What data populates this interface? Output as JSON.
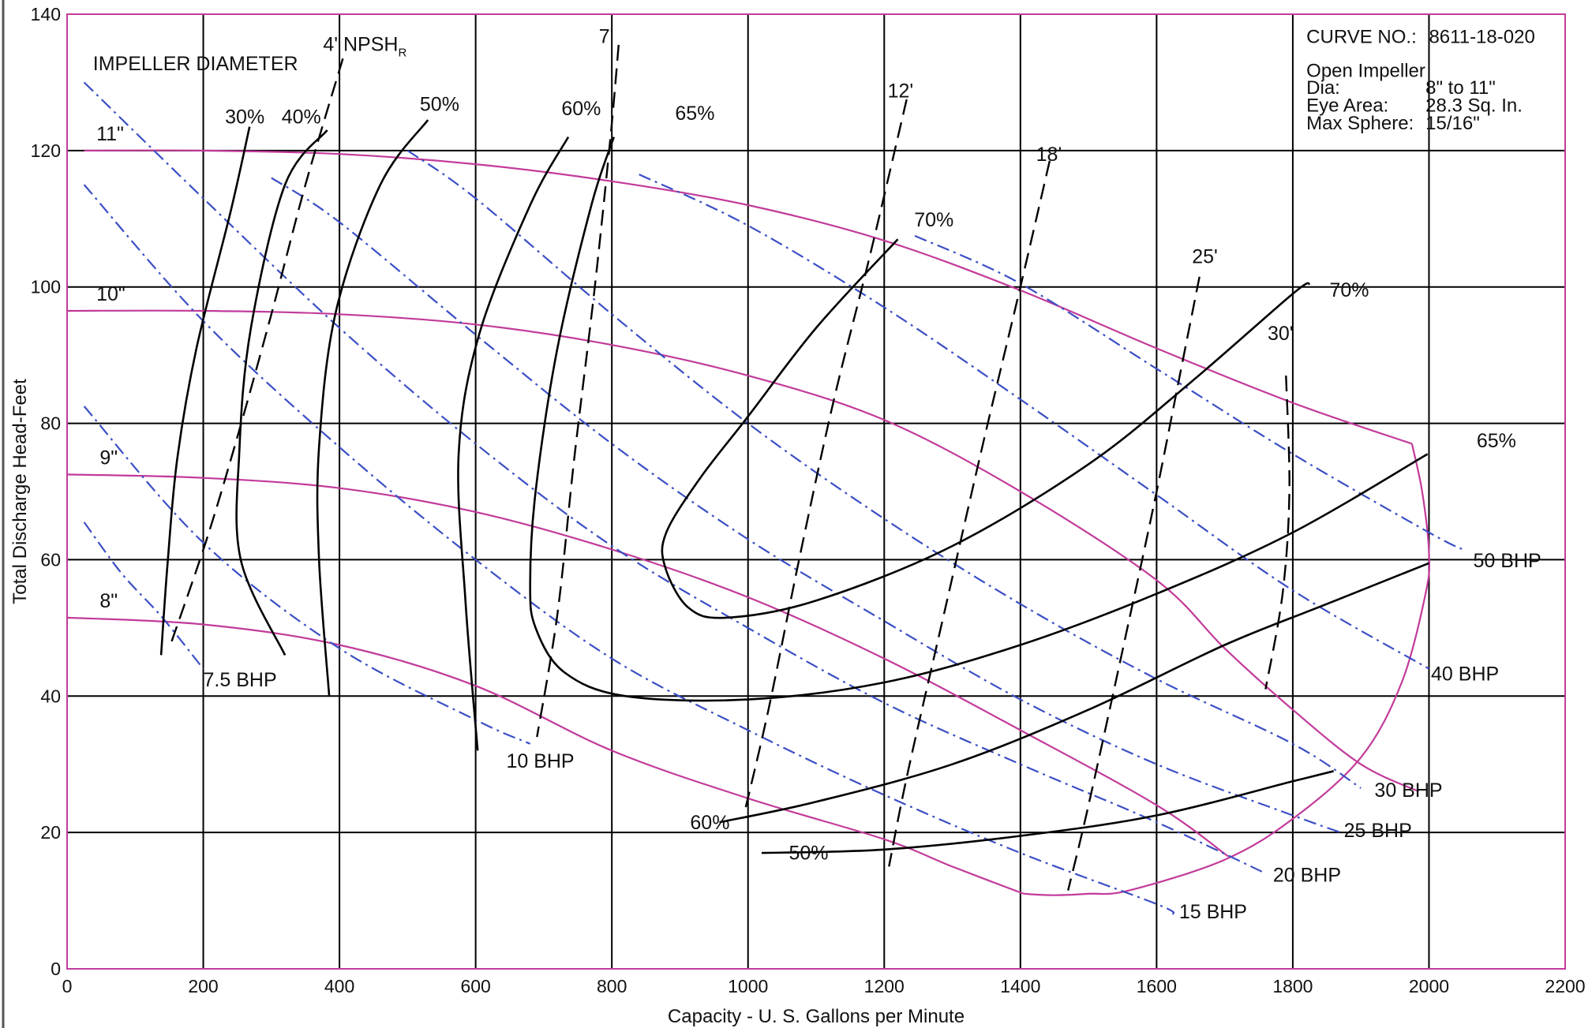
{
  "colors": {
    "impeller": "#c23b9a",
    "bhp": "#3b4fc4",
    "efficiency": "#000000",
    "npsh": "#000000",
    "grid": "#000000",
    "frame": "#c23b9a"
  },
  "chart_data": {
    "type": "line",
    "title": "",
    "xlabel": "Capacity - U. S. Gallons per Minute",
    "ylabel": "Total Discharge Head-Feet",
    "xlim": [
      0,
      2200
    ],
    "ylim": [
      0,
      140
    ],
    "x_ticks": [
      "0",
      "200",
      "400",
      "600",
      "800",
      "1000",
      "1200",
      "1400",
      "1600",
      "1800",
      "2000",
      "2200"
    ],
    "y_ticks": [
      "0",
      "20",
      "40",
      "60",
      "80",
      "100",
      "120",
      "140"
    ],
    "grid": true,
    "curve_info": {
      "curve_no_label": "CURVE NO.:",
      "curve_no_value": "8611-18-020",
      "impeller_type": "Open Impeller",
      "rows": [
        {
          "label": "Dia:",
          "value": "8\" to 11\""
        },
        {
          "label": "Eye Area:",
          "value": "28.3 Sq. In."
        },
        {
          "label": "Max Sphere:",
          "value": "15/16\""
        }
      ]
    },
    "impeller_title": "IMPELLER DIAMETER",
    "npsh_title": "4' NPSH",
    "npsh_title_sub": "R",
    "impeller_curves": [
      {
        "name": "11\"",
        "points": [
          [
            25,
            120
          ],
          [
            200,
            120
          ],
          [
            400,
            119.5
          ],
          [
            600,
            118
          ],
          [
            800,
            115.5
          ],
          [
            1000,
            112
          ],
          [
            1200,
            106.8
          ],
          [
            1400,
            99.5
          ],
          [
            1600,
            91
          ],
          [
            1800,
            83
          ],
          [
            1975,
            77
          ]
        ]
      },
      {
        "name": "10\"",
        "points": [
          [
            0,
            96.5
          ],
          [
            200,
            96.5
          ],
          [
            400,
            96
          ],
          [
            600,
            94.5
          ],
          [
            800,
            91.5
          ],
          [
            1000,
            87
          ],
          [
            1200,
            80.5
          ],
          [
            1400,
            70
          ],
          [
            1600,
            57
          ],
          [
            1700,
            47
          ],
          [
            1800,
            38
          ],
          [
            1900,
            30
          ],
          [
            1985,
            26
          ]
        ]
      },
      {
        "name": "9\"",
        "points": [
          [
            0,
            72.5
          ],
          [
            200,
            72
          ],
          [
            400,
            70.5
          ],
          [
            600,
            67
          ],
          [
            800,
            61.5
          ],
          [
            1000,
            54.5
          ],
          [
            1200,
            45.5
          ],
          [
            1400,
            35
          ],
          [
            1600,
            24
          ],
          [
            1705,
            16.5
          ]
        ]
      },
      {
        "name": "8\"",
        "points": [
          [
            0,
            51.5
          ],
          [
            200,
            50.5
          ],
          [
            400,
            47.5
          ],
          [
            600,
            41.5
          ],
          [
            800,
            32
          ],
          [
            1000,
            25
          ],
          [
            1200,
            19
          ],
          [
            1300,
            15
          ],
          [
            1405,
            11
          ]
        ]
      },
      {
        "name": "",
        "points": [
          [
            1405,
            11
          ],
          [
            1450,
            10.8
          ],
          [
            1500,
            11
          ],
          [
            1560,
            11.5
          ],
          [
            1700,
            16
          ],
          [
            1800,
            22
          ],
          [
            1900,
            31
          ],
          [
            1960,
            42
          ],
          [
            1995,
            55
          ],
          [
            2000,
            61
          ],
          [
            1990,
            70
          ],
          [
            1975,
            77
          ]
        ]
      }
    ],
    "bhp_curves": [
      {
        "name": "7.5 BHP",
        "points": [
          [
            25,
            65.5
          ],
          [
            80,
            58
          ],
          [
            140,
            51.5
          ],
          [
            200,
            44
          ]
        ]
      },
      {
        "name": "10 BHP",
        "points": [
          [
            25,
            82.5
          ],
          [
            200,
            62.5
          ],
          [
            400,
            47
          ],
          [
            600,
            36.5
          ],
          [
            680,
            33
          ]
        ]
      },
      {
        "name": "15 BHP",
        "points": [
          [
            25,
            115
          ],
          [
            200,
            95
          ],
          [
            400,
            76.5
          ],
          [
            600,
            60
          ],
          [
            800,
            45.5
          ],
          [
            1000,
            35
          ],
          [
            1200,
            25.5
          ],
          [
            1400,
            17
          ],
          [
            1600,
            9.5
          ],
          [
            1625,
            8
          ]
        ]
      },
      {
        "name": "20 BHP",
        "points": [
          [
            25,
            130
          ],
          [
            200,
            113
          ],
          [
            400,
            94
          ],
          [
            600,
            77
          ],
          [
            800,
            62
          ],
          [
            1000,
            50
          ],
          [
            1200,
            39
          ],
          [
            1400,
            30
          ],
          [
            1600,
            21.5
          ],
          [
            1760,
            14
          ]
        ]
      },
      {
        "name": "25 BHP",
        "points": [
          [
            300,
            116
          ],
          [
            400,
            109.5
          ],
          [
            600,
            93
          ],
          [
            800,
            77
          ],
          [
            1000,
            63
          ],
          [
            1200,
            51
          ],
          [
            1400,
            39.5
          ],
          [
            1600,
            30
          ],
          [
            1800,
            22.5
          ],
          [
            1870,
            20
          ]
        ]
      },
      {
        "name": "30 BHP",
        "points": [
          [
            500,
            120
          ],
          [
            600,
            113
          ],
          [
            800,
            96
          ],
          [
            1000,
            80
          ],
          [
            1200,
            66
          ],
          [
            1400,
            53.5
          ],
          [
            1600,
            42.5
          ],
          [
            1800,
            33
          ],
          [
            1900,
            26.5
          ]
        ]
      },
      {
        "name": "40 BHP",
        "points": [
          [
            840,
            116.5
          ],
          [
            1000,
            109
          ],
          [
            1200,
            97
          ],
          [
            1400,
            83.5
          ],
          [
            1600,
            69.5
          ],
          [
            1800,
            55.5
          ],
          [
            2000,
            44
          ]
        ]
      },
      {
        "name": "50 BHP",
        "points": [
          [
            1245,
            107.5
          ],
          [
            1400,
            100.5
          ],
          [
            1600,
            88
          ],
          [
            1800,
            75.5
          ],
          [
            2000,
            64
          ],
          [
            2050,
            61.5
          ]
        ]
      }
    ],
    "efficiency_curves": [
      {
        "name": "30%",
        "points": [
          [
            268,
            123.5
          ],
          [
            240,
            111
          ],
          [
            190,
            91
          ],
          [
            162,
            75
          ],
          [
            148,
            60
          ],
          [
            138,
            46
          ]
        ]
      },
      {
        "name": "40%",
        "points": [
          [
            382,
            123
          ],
          [
            320,
            115
          ],
          [
            270,
            94
          ],
          [
            253,
            76
          ],
          [
            255,
            60
          ],
          [
            320,
            46
          ]
        ]
      },
      {
        "name": "50%",
        "points": [
          [
            530,
            124.5
          ],
          [
            460,
            115
          ],
          [
            395,
            96.5
          ],
          [
            370,
            76.5
          ],
          [
            370,
            60
          ],
          [
            385,
            40
          ]
        ]
      },
      {
        "name": "60%",
        "points": [
          [
            736,
            122
          ],
          [
            680,
            112
          ],
          [
            605,
            93
          ],
          [
            575,
            75.5
          ],
          [
            585,
            54
          ],
          [
            603,
            32
          ]
        ]
      },
      {
        "name": "65%",
        "points": [
          [
            803,
            122
          ],
          [
            770,
            112
          ],
          [
            720,
            91
          ],
          [
            688,
            70
          ],
          [
            680,
            56.5
          ],
          [
            688,
            50
          ],
          [
            730,
            43.5
          ],
          [
            820,
            40
          ],
          [
            1000,
            39.5
          ],
          [
            1200,
            42
          ],
          [
            1400,
            47.5
          ],
          [
            1600,
            55
          ],
          [
            1800,
            64
          ],
          [
            1998,
            75.5
          ]
        ]
      },
      {
        "name": "70%",
        "points": [
          [
            1220,
            107
          ],
          [
            1100,
            94
          ],
          [
            1000,
            81
          ],
          [
            930,
            72
          ],
          [
            880,
            64
          ],
          [
            878,
            59
          ],
          [
            912,
            53
          ],
          [
            968,
            51.5
          ],
          [
            1100,
            54
          ],
          [
            1300,
            62
          ],
          [
            1500,
            74
          ],
          [
            1650,
            86
          ],
          [
            1800,
            99
          ],
          [
            1825,
            100.5
          ]
        ]
      },
      {
        "name": "60%",
        "points": [
          [
            958,
            21.5
          ],
          [
            1100,
            24.5
          ],
          [
            1300,
            30
          ],
          [
            1500,
            38
          ],
          [
            1700,
            47.5
          ],
          [
            1850,
            53.5
          ],
          [
            2000,
            59.5
          ]
        ]
      },
      {
        "name": "50%",
        "points": [
          [
            1020,
            17
          ],
          [
            1200,
            17.5
          ],
          [
            1400,
            19.5
          ],
          [
            1600,
            22.5
          ],
          [
            1800,
            27.5
          ],
          [
            1860,
            29
          ]
        ]
      }
    ],
    "npsh_curves": [
      {
        "name": "4'",
        "points": [
          [
            405,
            133.5
          ],
          [
            350,
            115
          ],
          [
            300,
            96
          ],
          [
            250,
            78
          ],
          [
            205,
            63
          ],
          [
            150,
            47
          ]
        ]
      },
      {
        "name": "7'",
        "points": [
          [
            810,
            135.5
          ],
          [
            798,
            122
          ],
          [
            775,
            100
          ],
          [
            745,
            75
          ],
          [
            720,
            52
          ],
          [
            690,
            34
          ]
        ]
      },
      {
        "name": "12'",
        "points": [
          [
            1233,
            127.5
          ],
          [
            1180,
            105
          ],
          [
            1125,
            83
          ],
          [
            1075,
            60
          ],
          [
            1030,
            38
          ],
          [
            995,
            23
          ]
        ]
      },
      {
        "name": "18'",
        "points": [
          [
            1443,
            118.5
          ],
          [
            1400,
            100
          ],
          [
            1345,
            77
          ],
          [
            1290,
            53
          ],
          [
            1235,
            29
          ],
          [
            1207,
            15
          ]
        ]
      },
      {
        "name": "25'",
        "points": [
          [
            1663,
            101.5
          ],
          [
            1640,
            90
          ],
          [
            1600,
            70
          ],
          [
            1555,
            49
          ],
          [
            1500,
            24
          ],
          [
            1470,
            11.5
          ]
        ]
      },
      {
        "name": "30'",
        "points": [
          [
            1790,
            87
          ],
          [
            1795,
            70
          ],
          [
            1785,
            55
          ],
          [
            1760,
            41
          ]
        ]
      }
    ],
    "annotations": [
      {
        "text": "11\"",
        "x": 43,
        "y": 121.5
      },
      {
        "text": "10\"",
        "x": 43,
        "y": 98
      },
      {
        "text": "9\"",
        "x": 48,
        "y": 74
      },
      {
        "text": "8\"",
        "x": 48,
        "y": 53
      },
      {
        "text": "IMPELLER DIAMETER",
        "x": 38,
        "y": 131.8
      },
      {
        "text": "30%",
        "x": 232,
        "y": 124
      },
      {
        "text": "40%",
        "x": 315,
        "y": 124
      },
      {
        "text": "50%",
        "x": 518,
        "y": 125.8
      },
      {
        "text": "60%",
        "x": 726,
        "y": 125.2
      },
      {
        "text": "65%",
        "x": 893,
        "y": 124.5
      },
      {
        "text": "70%",
        "x": 1244,
        "y": 108.9
      },
      {
        "text": "70%",
        "x": 1854,
        "y": 98.6
      },
      {
        "text": "65%",
        "x": 2070,
        "y": 76.5
      },
      {
        "text": "60%",
        "x": 915,
        "y": 20.5
      },
      {
        "text": "50%",
        "x": 1060,
        "y": 16
      },
      {
        "text": "7'",
        "x": 781,
        "y": 135.8
      },
      {
        "text": "12'",
        "x": 1205,
        "y": 127.8
      },
      {
        "text": "18'",
        "x": 1423,
        "y": 118.5
      },
      {
        "text": "25'",
        "x": 1652,
        "y": 103.5
      },
      {
        "text": "30'",
        "x": 1763,
        "y": 92.2
      },
      {
        "text": "7.5 BHP",
        "x": 200,
        "y": 41.4
      },
      {
        "text": "10 BHP",
        "x": 645,
        "y": 29.5
      },
      {
        "text": "15 BHP",
        "x": 1633,
        "y": 7.4
      },
      {
        "text": "20 BHP",
        "x": 1771,
        "y": 12.8
      },
      {
        "text": "25 BHP",
        "x": 1875,
        "y": 19.3
      },
      {
        "text": "30 BHP",
        "x": 1920,
        "y": 25.2
      },
      {
        "text": "40 BHP",
        "x": 2003,
        "y": 42.3
      },
      {
        "text": "50 BHP",
        "x": 2065,
        "y": 58.9
      }
    ]
  }
}
